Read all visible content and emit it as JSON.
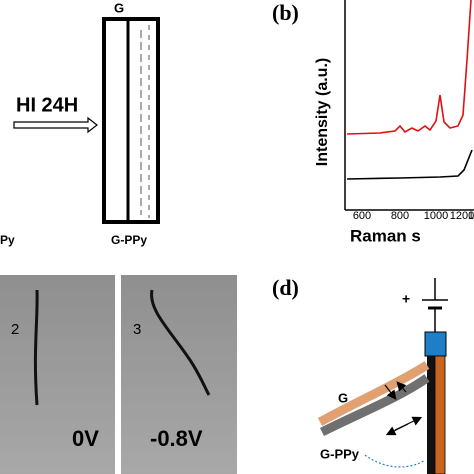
{
  "panel_a": {
    "label_g": "G",
    "reaction": "HI 24H",
    "label_left": "Py",
    "label_gppy": "G-PPy"
  },
  "panel_b": {
    "label": "(b)",
    "y_axis_label": "Intensity (a.u.)",
    "x_axis_label": "Raman s",
    "x_tick_labels": [
      "600",
      "800",
      "1000",
      "1200",
      "1"
    ]
  },
  "panel_c": {
    "photos": [
      {
        "index": "2",
        "voltage": "0V"
      },
      {
        "index": "3",
        "voltage": "-0.8V"
      }
    ]
  },
  "panel_d": {
    "label": "(d)",
    "plus": "+",
    "label_g": "G",
    "label_gppy": "G-PPy"
  }
}
